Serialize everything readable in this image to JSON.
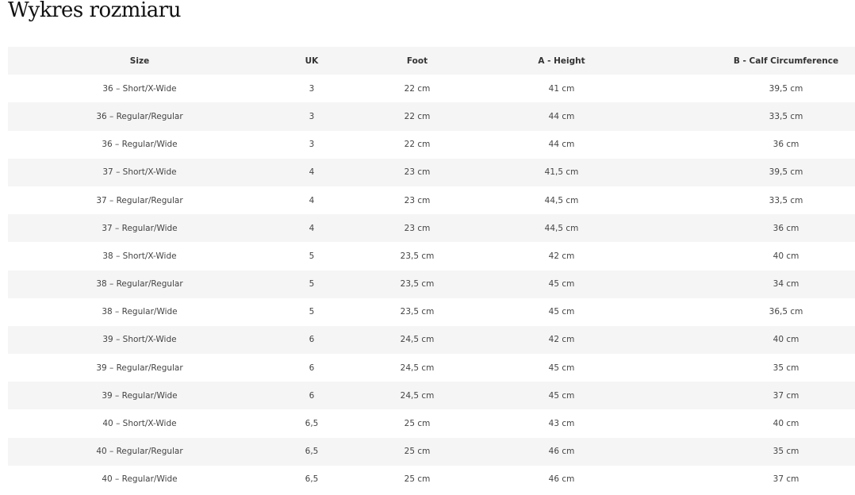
{
  "title": "Wykres rozmiaru",
  "columns": [
    "Size",
    "UK",
    "Foot",
    "A - Height",
    "B - Calf Circumference"
  ],
  "rows": [
    [
      "36 – Short/X-Wide",
      "3",
      "22 cm",
      "41 cm",
      "39,5 cm"
    ],
    [
      "36 – Regular/Regular",
      "3",
      "22 cm",
      "44 cm",
      "33,5 cm"
    ],
    [
      "36 – Regular/Wide",
      "3",
      "22 cm",
      "44 cm",
      "36 cm"
    ],
    [
      "37 – Short/X-Wide",
      "4",
      "23 cm",
      "41,5 cm",
      "39,5 cm"
    ],
    [
      "37 – Regular/Regular",
      "4",
      "23 cm",
      "44,5 cm",
      "33,5 cm"
    ],
    [
      "37 – Regular/Wide",
      "4",
      "23 cm",
      "44,5 cm",
      "36 cm"
    ],
    [
      "38 – Short/X-Wide",
      "5",
      "23,5 cm",
      "42 cm",
      "40 cm"
    ],
    [
      "38 – Regular/Regular",
      "5",
      "23,5 cm",
      "45 cm",
      "34 cm"
    ],
    [
      "38 – Regular/Wide",
      "5",
      "23,5 cm",
      "45 cm",
      "36,5 cm"
    ],
    [
      "39 – Short/X-Wide",
      "6",
      "24,5 cm",
      "42 cm",
      "40 cm"
    ],
    [
      "39 – Regular/Regular",
      "6",
      "24,5 cm",
      "45 cm",
      "35 cm"
    ],
    [
      "39 – Regular/Wide",
      "6",
      "24,5 cm",
      "45 cm",
      "37 cm"
    ],
    [
      "40 – Short/X-Wide",
      "6,5",
      "25 cm",
      "43 cm",
      "40 cm"
    ],
    [
      "40 – Regular/Regular",
      "6,5",
      "25 cm",
      "46 cm",
      "35 cm"
    ],
    [
      "40 – Regular/Wide",
      "6,5",
      "25 cm",
      "46 cm",
      "37 cm"
    ]
  ]
}
